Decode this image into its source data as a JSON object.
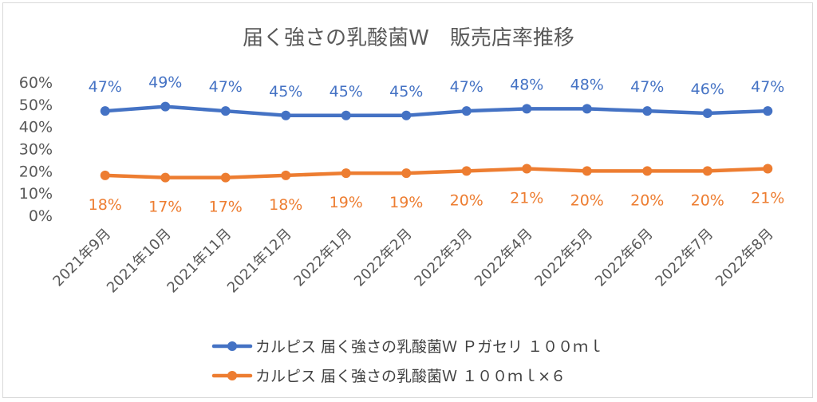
{
  "colors": {
    "series1": "#4472c4",
    "series2": "#ed7d31",
    "axis_text": "#595959",
    "gridline": "#d9d9d9"
  },
  "chart_data": {
    "type": "line",
    "title": "届く強さの乳酸菌W　販売店率推移",
    "categories": [
      "2021年9月",
      "2021年10月",
      "2021年11月",
      "2021年12月",
      "2022年1月",
      "2022年2月",
      "2022年3月",
      "2022年4月",
      "2022年5月",
      "2022年6月",
      "2022年7月",
      "2022年8月"
    ],
    "y_tick_labels": [
      "0%",
      "10%",
      "20%",
      "30%",
      "40%",
      "50%",
      "60%"
    ],
    "ylim": [
      0,
      0.6
    ],
    "grid": false,
    "legend_position": "bottom",
    "series": [
      {
        "name": "カルピス 届く強さの乳酸菌Ｗ Ｐガセリ １００ｍｌ",
        "values": [
          0.47,
          0.49,
          0.47,
          0.45,
          0.45,
          0.45,
          0.47,
          0.48,
          0.48,
          0.47,
          0.46,
          0.47
        ],
        "labels": [
          "47%",
          "49%",
          "47%",
          "45%",
          "45%",
          "45%",
          "47%",
          "48%",
          "48%",
          "47%",
          "46%",
          "47%"
        ],
        "label_position": "above"
      },
      {
        "name": "カルピス 届く強さの乳酸菌Ｗ １００ｍｌ×６",
        "values": [
          0.18,
          0.17,
          0.17,
          0.18,
          0.19,
          0.19,
          0.2,
          0.21,
          0.2,
          0.2,
          0.2,
          0.21
        ],
        "labels": [
          "18%",
          "17%",
          "17%",
          "18%",
          "19%",
          "19%",
          "20%",
          "21%",
          "20%",
          "20%",
          "20%",
          "21%"
        ],
        "label_position": "below"
      }
    ]
  }
}
